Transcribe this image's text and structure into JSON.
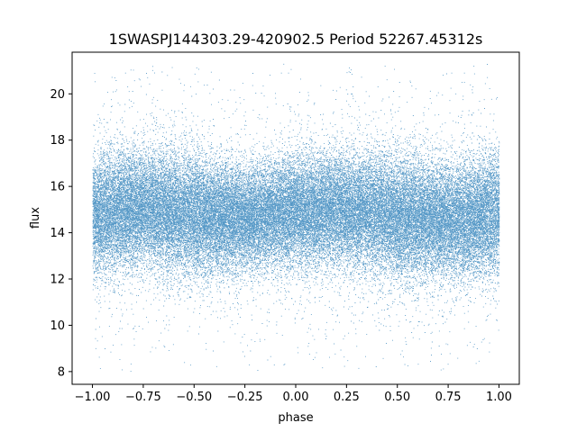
{
  "chart_data": {
    "type": "scatter",
    "title": "1SWASPJ144303.29-420902.5 Period 52267.45312s",
    "xlabel": "phase",
    "ylabel": "flux",
    "xlim": [
      -1.1,
      1.1
    ],
    "ylim": [
      7.45,
      21.8
    ],
    "x_ticks": [
      -1.0,
      -0.75,
      -0.5,
      -0.25,
      0.0,
      0.25,
      0.5,
      0.75,
      1.0
    ],
    "x_tick_labels": [
      "−1.00",
      "−0.75",
      "−0.50",
      "−0.25",
      "0.00",
      "0.25",
      "0.50",
      "0.75",
      "1.00"
    ],
    "y_ticks": [
      8,
      10,
      12,
      14,
      16,
      18,
      20
    ],
    "y_tick_labels": [
      "8",
      "10",
      "12",
      "14",
      "16",
      "18",
      "20"
    ],
    "grid": false,
    "marker_color": "#1f77b4",
    "x_range": [
      -1.0,
      1.0
    ],
    "flux_range": [
      8.0,
      21.3
    ],
    "series": [
      {
        "description": "phase-folded light curve, dense band of points",
        "profile_phase": [
          -1.0,
          -0.75,
          -0.5,
          -0.25,
          0.0,
          0.25,
          0.5,
          0.75,
          1.0
        ],
        "profile_mean_flux": [
          14.7,
          15.1,
          14.7,
          14.6,
          14.9,
          15.0,
          14.7,
          14.5,
          14.8
        ],
        "profile_band_spread": [
          1.3,
          1.2,
          1.3,
          1.1,
          1.2,
          1.2,
          1.3,
          1.2,
          1.3
        ],
        "approx_point_count": 60000
      }
    ]
  }
}
